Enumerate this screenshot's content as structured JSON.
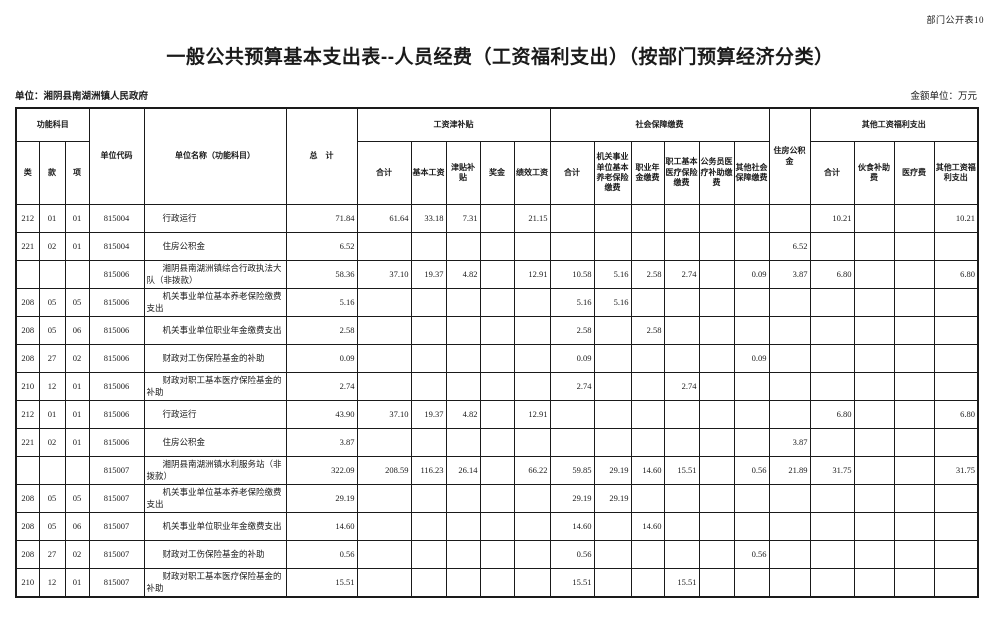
{
  "page": {
    "sheet_label": "部门公开表10",
    "title": "一般公共预算基本支出表--人员经费（工资福利支出）（按部门预算经济分类）",
    "unit_line": "单位：湘阴县南湖洲镇人民政府",
    "amount_unit_line": "金额单位：万元"
  },
  "table": {
    "header": {
      "func_group": "功能科目",
      "func_cols": [
        "类",
        "款",
        "项"
      ],
      "unit_code": "单位代码",
      "unit_name": "单位名称（功能科目）",
      "grand_total": "总　计",
      "wage_group": "工资津补贴",
      "wage_cols": [
        "合计",
        "基本工资",
        "津贴补贴",
        "奖金",
        "绩效工资"
      ],
      "social_group": "社会保障缴费",
      "social_cols": [
        "合计",
        "机关事业单位基本养老保险缴费",
        "职业年金缴费",
        "职工基本医疗保险缴费",
        "公务员医疗补助缴费",
        "其他社会保障缴费"
      ],
      "housing_fund": "住房公积金",
      "other_group": "其他工资福利支出",
      "other_cols": [
        "合计",
        "伙食补助费",
        "医疗费",
        "其他工资福利支出"
      ]
    },
    "rows": [
      [
        "212",
        "01",
        "01",
        "815004",
        "行政运行",
        "71.84",
        "61.64",
        "33.18",
        "7.31",
        "",
        "21.15",
        "",
        "",
        "",
        "",
        "",
        "",
        "",
        "10.21",
        "",
        "",
        "10.21"
      ],
      [
        "221",
        "02",
        "01",
        "815004",
        "住房公积金",
        "6.52",
        "",
        "",
        "",
        "",
        "",
        "",
        "",
        "",
        "",
        "",
        "",
        "6.52",
        "",
        "",
        "",
        ""
      ],
      [
        "",
        "",
        "",
        "815006",
        "湘阴县南湖洲镇综合行政执法大队（非拨款）",
        "58.36",
        "37.10",
        "19.37",
        "4.82",
        "",
        "12.91",
        "10.58",
        "5.16",
        "2.58",
        "2.74",
        "",
        "0.09",
        "3.87",
        "6.80",
        "",
        "",
        "6.80"
      ],
      [
        "208",
        "05",
        "05",
        "815006",
        "机关事业单位基本养老保险缴费支出",
        "5.16",
        "",
        "",
        "",
        "",
        "",
        "5.16",
        "5.16",
        "",
        "",
        "",
        "",
        "",
        "",
        "",
        "",
        ""
      ],
      [
        "208",
        "05",
        "06",
        "815006",
        "机关事业单位职业年金缴费支出",
        "2.58",
        "",
        "",
        "",
        "",
        "",
        "2.58",
        "",
        "2.58",
        "",
        "",
        "",
        "",
        "",
        "",
        "",
        ""
      ],
      [
        "208",
        "27",
        "02",
        "815006",
        "财政对工伤保险基金的补助",
        "0.09",
        "",
        "",
        "",
        "",
        "",
        "0.09",
        "",
        "",
        "",
        "",
        "0.09",
        "",
        "",
        "",
        "",
        ""
      ],
      [
        "210",
        "12",
        "01",
        "815006",
        "财政对职工基本医疗保险基金的补助",
        "2.74",
        "",
        "",
        "",
        "",
        "",
        "2.74",
        "",
        "",
        "2.74",
        "",
        "",
        "",
        "",
        "",
        "",
        ""
      ],
      [
        "212",
        "01",
        "01",
        "815006",
        "行政运行",
        "43.90",
        "37.10",
        "19.37",
        "4.82",
        "",
        "12.91",
        "",
        "",
        "",
        "",
        "",
        "",
        "",
        "6.80",
        "",
        "",
        "6.80"
      ],
      [
        "221",
        "02",
        "01",
        "815006",
        "住房公积金",
        "3.87",
        "",
        "",
        "",
        "",
        "",
        "",
        "",
        "",
        "",
        "",
        "",
        "3.87",
        "",
        "",
        "",
        ""
      ],
      [
        "",
        "",
        "",
        "815007",
        "湘阴县南湖洲镇水利服务站（非拨款）",
        "322.09",
        "208.59",
        "116.23",
        "26.14",
        "",
        "66.22",
        "59.85",
        "29.19",
        "14.60",
        "15.51",
        "",
        "0.56",
        "21.89",
        "31.75",
        "",
        "",
        "31.75"
      ],
      [
        "208",
        "05",
        "05",
        "815007",
        "机关事业单位基本养老保险缴费支出",
        "29.19",
        "",
        "",
        "",
        "",
        "",
        "29.19",
        "29.19",
        "",
        "",
        "",
        "",
        "",
        "",
        "",
        "",
        ""
      ],
      [
        "208",
        "05",
        "06",
        "815007",
        "机关事业单位职业年金缴费支出",
        "14.60",
        "",
        "",
        "",
        "",
        "",
        "14.60",
        "",
        "14.60",
        "",
        "",
        "",
        "",
        "",
        "",
        "",
        ""
      ],
      [
        "208",
        "27",
        "02",
        "815007",
        "财政对工伤保险基金的补助",
        "0.56",
        "",
        "",
        "",
        "",
        "",
        "0.56",
        "",
        "",
        "",
        "",
        "0.56",
        "",
        "",
        "",
        "",
        ""
      ],
      [
        "210",
        "12",
        "01",
        "815007",
        "财政对职工基本医疗保险基金的补助",
        "15.51",
        "",
        "",
        "",
        "",
        "",
        "15.51",
        "",
        "",
        "15.51",
        "",
        "",
        "",
        "",
        "",
        "",
        ""
      ]
    ]
  }
}
